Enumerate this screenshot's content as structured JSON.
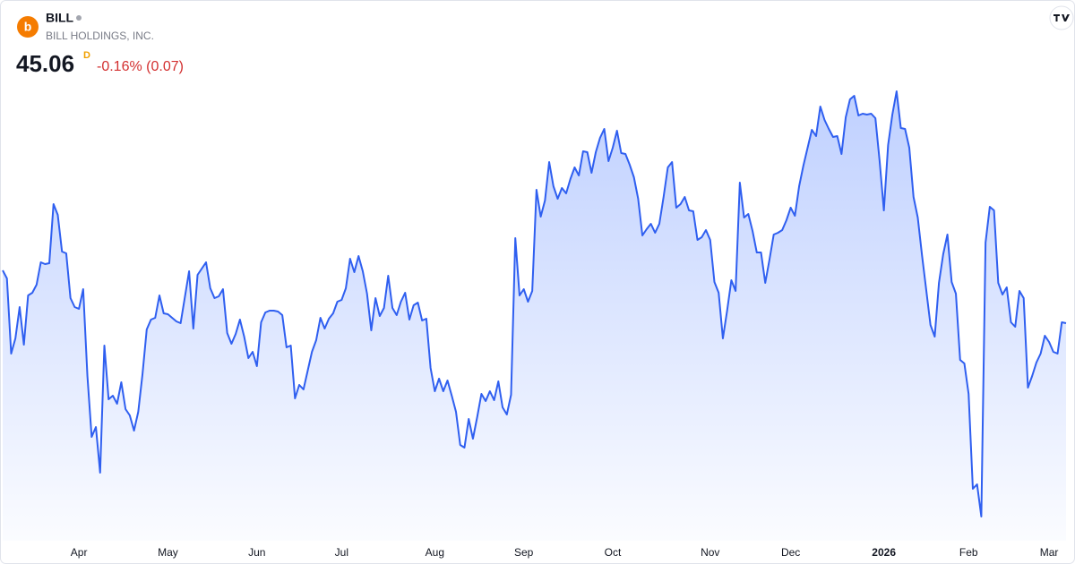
{
  "chart_data": {
    "type": "area",
    "logo": "b",
    "symbol": "BILL",
    "company": "BILL HOLDINGS, INC.",
    "price": 45.06,
    "interval": "D",
    "change": "-0.16% (0.07)",
    "ylim": [
      36,
      56
    ],
    "xticks": [
      {
        "value": 18,
        "label": "Apr"
      },
      {
        "value": 39,
        "label": "May"
      },
      {
        "value": 60,
        "label": "Jun"
      },
      {
        "value": 80,
        "label": "Jul"
      },
      {
        "value": 102,
        "label": "Aug"
      },
      {
        "value": 123,
        "label": "Sep"
      },
      {
        "value": 144,
        "label": "Oct"
      },
      {
        "value": 167,
        "label": "Nov"
      },
      {
        "value": 186,
        "label": "Dec"
      },
      {
        "value": 208,
        "label": "2026"
      },
      {
        "value": 228,
        "label": "Feb"
      },
      {
        "value": 247,
        "label": "Mar"
      }
    ],
    "series": [
      {
        "name": "BILL",
        "color": "#2f5ff0",
        "values": [
          47.42,
          47.06,
          43.7,
          44.38,
          45.78,
          44.1,
          46.3,
          46.42,
          46.78,
          47.78,
          47.7,
          47.74,
          50.38,
          49.9,
          48.26,
          48.18,
          46.18,
          45.78,
          45.7,
          46.58,
          42.7,
          39.98,
          40.42,
          38.38,
          44.06,
          41.66,
          41.82,
          41.46,
          42.42,
          41.22,
          40.94,
          40.26,
          41.1,
          42.78,
          44.78,
          45.22,
          45.3,
          46.3,
          45.5,
          45.46,
          45.3,
          45.14,
          45.06,
          46.22,
          47.38,
          44.82,
          47.22,
          47.5,
          47.78,
          46.62,
          46.18,
          46.26,
          46.58,
          44.62,
          44.14,
          44.58,
          45.22,
          44.46,
          43.5,
          43.78,
          43.14,
          45.1,
          45.54,
          45.62,
          45.62,
          45.58,
          45.42,
          43.98,
          44.06,
          41.7,
          42.3,
          42.1,
          42.94,
          43.78,
          44.3,
          45.3,
          44.82,
          45.26,
          45.5,
          46.02,
          46.1,
          46.62,
          47.94,
          47.34,
          48.06,
          47.38,
          46.38,
          44.74,
          46.18,
          45.38,
          45.74,
          47.18,
          45.74,
          45.42,
          46.02,
          46.42,
          45.22,
          45.86,
          45.98,
          45.18,
          45.26,
          43.06,
          42.02,
          42.58,
          42.02,
          42.5,
          41.82,
          41.1,
          39.62,
          39.5,
          40.78,
          39.9,
          40.86,
          41.9,
          41.58,
          42.02,
          41.62,
          42.46,
          41.3,
          40.98,
          41.86,
          48.86,
          46.3,
          46.58,
          46.02,
          46.5,
          51.02,
          49.82,
          50.54,
          52.26,
          51.18,
          50.62,
          51.1,
          50.86,
          51.5,
          52.02,
          51.66,
          52.74,
          52.7,
          51.78,
          52.7,
          53.34,
          53.74,
          52.3,
          52.9,
          53.66,
          52.66,
          52.62,
          52.14,
          51.58,
          50.62,
          48.98,
          49.26,
          49.5,
          49.1,
          49.5,
          50.7,
          52.02,
          52.26,
          50.22,
          50.38,
          50.7,
          50.1,
          50.06,
          48.78,
          48.9,
          49.22,
          48.78,
          46.9,
          46.42,
          44.38,
          45.62,
          46.98,
          46.5,
          51.34,
          49.78,
          49.94,
          49.18,
          48.22,
          48.22,
          46.86,
          47.9,
          49.02,
          49.1,
          49.22,
          49.66,
          50.22,
          49.86,
          51.18,
          52.1,
          52.9,
          53.7,
          53.42,
          54.74,
          54.14,
          53.74,
          53.38,
          53.42,
          52.62,
          54.26,
          55.06,
          55.22,
          54.34,
          54.42,
          54.38,
          54.42,
          54.22,
          52.3,
          50.1,
          53.02,
          54.38,
          55.42,
          53.78,
          53.74,
          52.9,
          50.7,
          49.78,
          48.1,
          46.54,
          44.98,
          44.46,
          46.86,
          48.14,
          49.02,
          46.9,
          46.38,
          43.42,
          43.26,
          41.9,
          37.66,
          37.86,
          36.42,
          48.66,
          50.26,
          50.1,
          46.86,
          46.34,
          46.66,
          45.1,
          44.9,
          46.5,
          46.18,
          42.18,
          42.7,
          43.3,
          43.7,
          44.5,
          44.22,
          43.78,
          43.7,
          45.1,
          45.06
        ]
      }
    ]
  }
}
